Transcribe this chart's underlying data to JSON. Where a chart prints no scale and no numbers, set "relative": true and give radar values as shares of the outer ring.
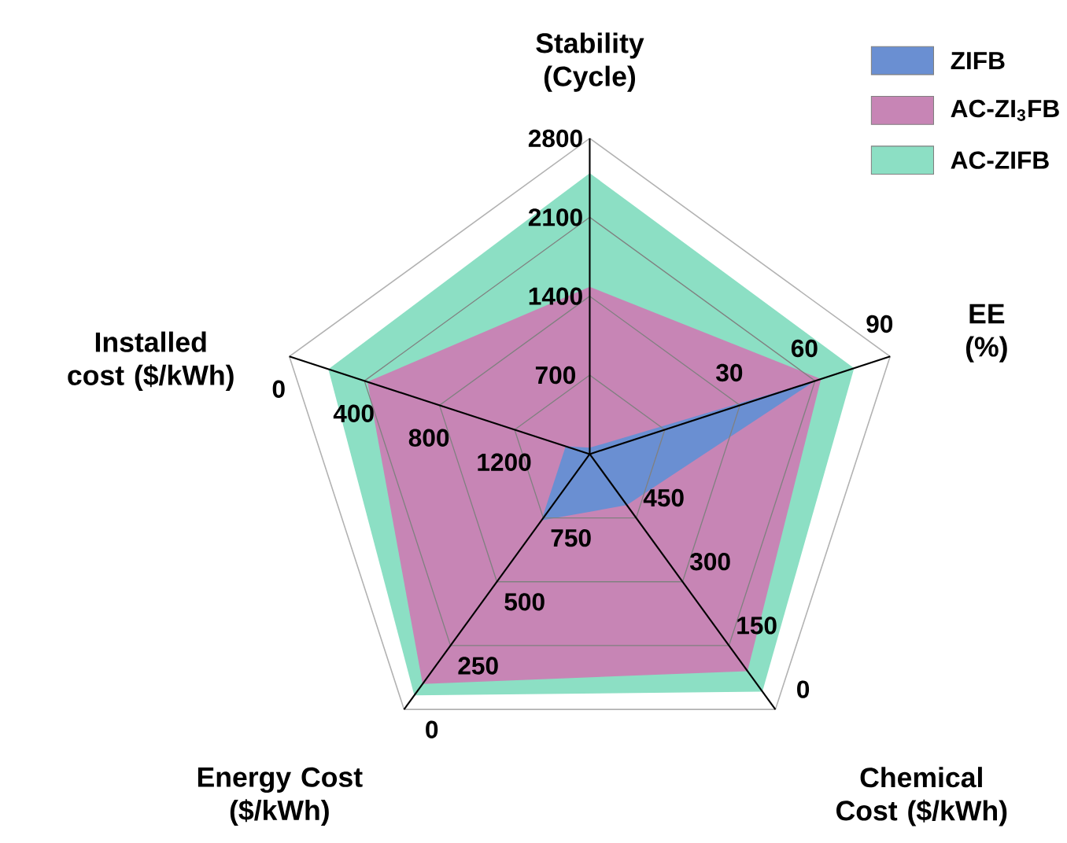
{
  "chart_data": {
    "type": "radar",
    "relative": true,
    "grid": true,
    "legend": "top right",
    "categories": [
      "Stability (Cycle)",
      "EE (%)",
      "Chemical Cost ($/kWh)",
      "Energy Cost ($/kWh)",
      "Installed cost ($/kWh)"
    ],
    "series": [
      {
        "name": "ZIFB",
        "color": "#6a8fd2",
        "values": [
          0.02,
          0.75,
          0.2,
          0.26,
          0.08
        ]
      },
      {
        "name": "AC-ZI$_{3}$FB",
        "color": "#c785b5",
        "values": [
          0.53,
          0.77,
          0.85,
          0.9,
          0.74
        ]
      },
      {
        "name": "AC-ZIFB",
        "color": "#8cdfc4",
        "values": [
          0.89,
          0.88,
          0.93,
          0.945,
          0.87
        ]
      }
    ],
    "annotations": [
      "700",
      "1400",
      "2100",
      "2800",
      "30",
      "60",
      "90",
      "450",
      "300",
      "150",
      "0",
      "750",
      "500",
      "250",
      "0",
      "1200",
      "800",
      "400",
      "0"
    ]
  }
}
